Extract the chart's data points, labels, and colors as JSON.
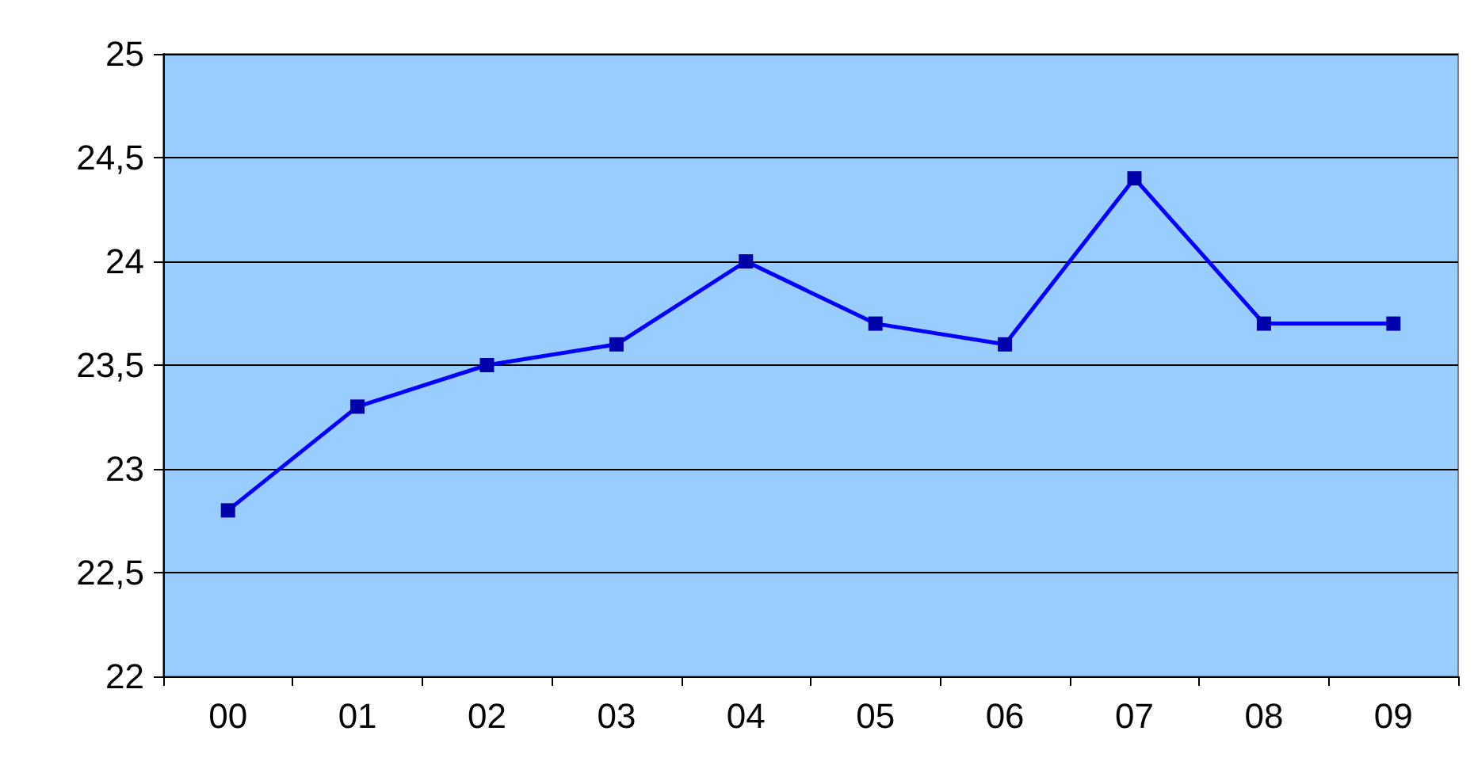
{
  "chart_data": {
    "type": "line",
    "categories": [
      "00",
      "01",
      "02",
      "03",
      "04",
      "05",
      "06",
      "07",
      "08",
      "09"
    ],
    "series": [
      {
        "color": "#0000ff",
        "values": [
          22.8,
          23.3,
          23.5,
          23.6,
          24.0,
          23.7,
          23.6,
          24.4,
          23.7,
          23.7
        ]
      }
    ],
    "ylim": [
      22,
      25
    ],
    "yticks": [
      22,
      {
        "value": 22.5,
        "label": "22,5"
      },
      23,
      {
        "value": 23.5,
        "label": "23,5"
      },
      24,
      {
        "value": 24.5,
        "label": "24,5"
      },
      25
    ],
    "grid": "y",
    "marker": "square"
  }
}
